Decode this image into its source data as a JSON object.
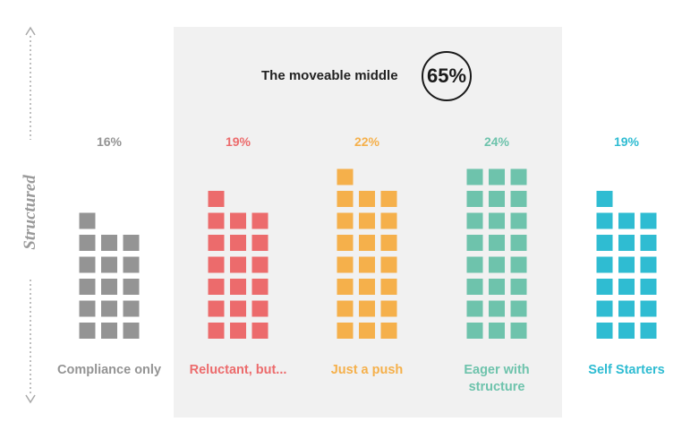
{
  "side_label": "Structured",
  "highlight": {
    "title": "The moveable middle",
    "value": "65%"
  },
  "colors": {
    "band": "#f1f1f1",
    "axis": "#a8a8a8"
  },
  "chart_data": {
    "type": "waffle",
    "categories": [
      {
        "label": "Compliance only",
        "percent": "16%",
        "squares": 16,
        "color": "#949494"
      },
      {
        "label": "Reluctant, but...",
        "percent": "19%",
        "squares": 19,
        "color": "#ec6b6c"
      },
      {
        "label": "Just a push",
        "percent": "22%",
        "squares": 22,
        "color": "#f5b04b"
      },
      {
        "label": "Eager with structure",
        "percent": "24%",
        "squares": 24,
        "color": "#6ec3ac"
      },
      {
        "label": "Self Starters",
        "percent": "19%",
        "squares": 19,
        "color": "#2fbcd2"
      }
    ],
    "columns_per_category": 3
  }
}
